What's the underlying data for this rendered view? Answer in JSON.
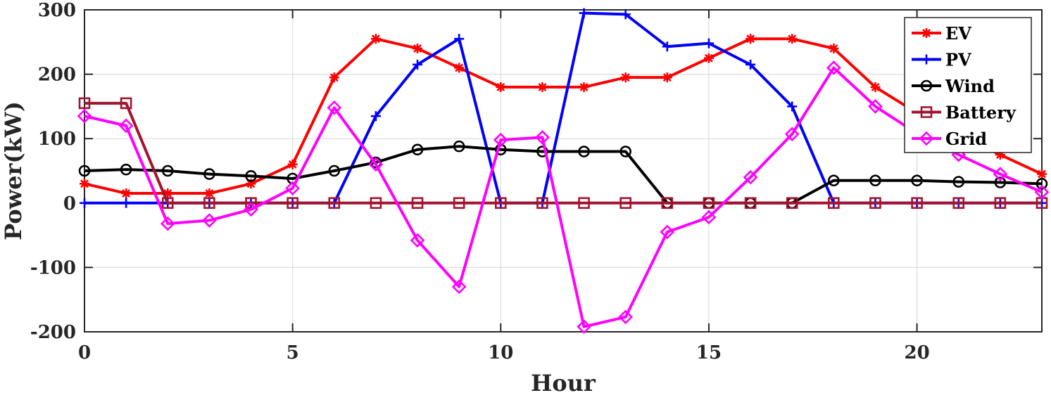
{
  "chart_data": {
    "type": "line",
    "title": "",
    "xlabel": "Hour",
    "ylabel": "Power(kW)",
    "xlim": [
      0,
      23
    ],
    "ylim": [
      -200,
      300
    ],
    "xticks": [
      0,
      5,
      10,
      15,
      20
    ],
    "yticks": [
      -200,
      -100,
      0,
      100,
      200,
      300
    ],
    "grid": true,
    "legend_position": "top-right",
    "x": [
      0,
      1,
      2,
      3,
      4,
      5,
      6,
      7,
      8,
      9,
      10,
      11,
      12,
      13,
      14,
      15,
      16,
      17,
      18,
      19,
      20,
      21,
      22,
      23
    ],
    "series": [
      {
        "name": "EV",
        "color": "#ff0000",
        "marker": "asterisk",
        "values": [
          30,
          15,
          15,
          15,
          30,
          60,
          195,
          255,
          240,
          210,
          180,
          180,
          180,
          195,
          195,
          225,
          255,
          255,
          240,
          180,
          140,
          105,
          75,
          45
        ]
      },
      {
        "name": "PV",
        "color": "#0000ff",
        "marker": "plus",
        "values": [
          0,
          0,
          0,
          0,
          0,
          0,
          0,
          135,
          215,
          255,
          0,
          0,
          295,
          293,
          243,
          248,
          215,
          150,
          0,
          0,
          0,
          0,
          0,
          0
        ]
      },
      {
        "name": "Wind",
        "color": "#000000",
        "marker": "circle",
        "values": [
          50,
          52,
          50,
          45,
          42,
          38,
          50,
          63,
          83,
          88,
          83,
          80,
          80,
          80,
          0,
          0,
          0,
          0,
          35,
          35,
          35,
          33,
          32,
          30
        ]
      },
      {
        "name": "Battery",
        "color": "#a2142f",
        "marker": "square",
        "values": [
          155,
          155,
          0,
          0,
          0,
          0,
          0,
          0,
          0,
          0,
          0,
          0,
          0,
          0,
          0,
          0,
          0,
          0,
          0,
          0,
          0,
          0,
          0,
          0
        ]
      },
      {
        "name": "Grid",
        "color": "#ff00ff",
        "marker": "diamond",
        "values": [
          135,
          120,
          -32,
          -27,
          -10,
          23,
          148,
          60,
          -58,
          -130,
          98,
          102,
          -192,
          -177,
          -45,
          -22,
          40,
          107,
          210,
          150,
          108,
          75,
          45,
          17
        ]
      }
    ]
  }
}
